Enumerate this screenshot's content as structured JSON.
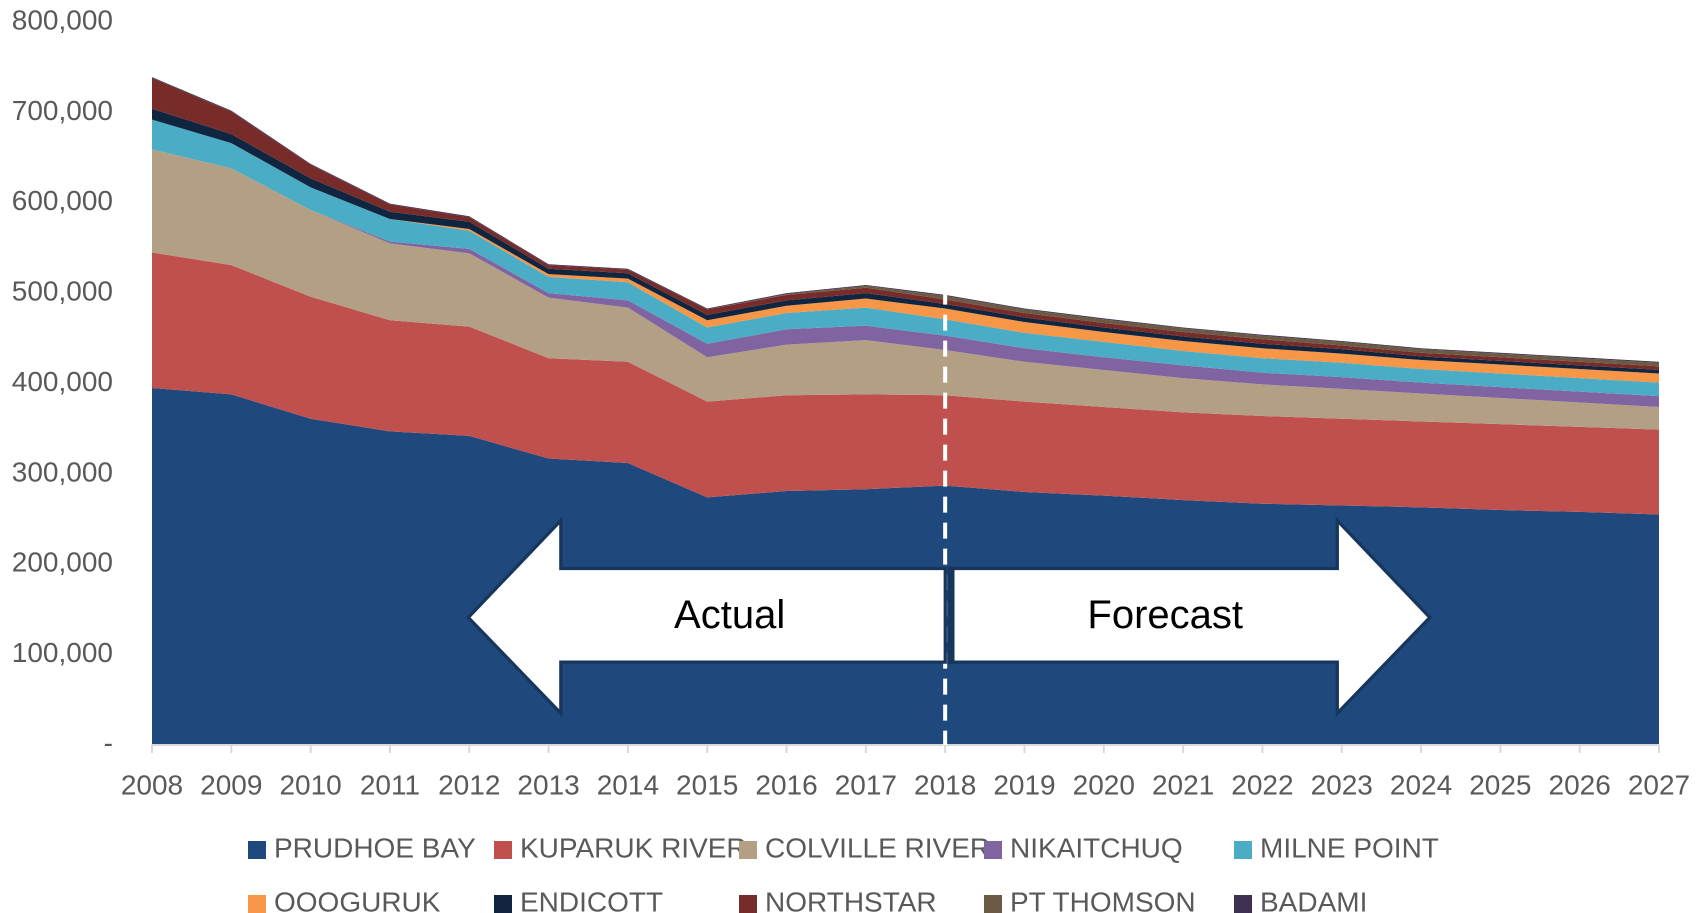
{
  "chart_data": {
    "type": "stacked_area",
    "categories": [
      "2008",
      "2009",
      "2010",
      "2011",
      "2012",
      "2013",
      "2014",
      "2015",
      "2016",
      "2017",
      "2018",
      "2019",
      "2020",
      "2021",
      "2022",
      "2023",
      "2024",
      "2025",
      "2026",
      "2027"
    ],
    "series": [
      {
        "name": "PRUDHOE BAY",
        "color": "#1f497d",
        "values": [
          395000,
          388000,
          361000,
          347000,
          342000,
          317000,
          312000,
          274000,
          281000,
          283000,
          287000,
          280000,
          276000,
          271000,
          267000,
          265000,
          263000,
          260000,
          258000,
          255000
        ]
      },
      {
        "name": "KUPARUK RIVER",
        "color": "#c0504d",
        "values": [
          150000,
          143000,
          135000,
          123000,
          121000,
          111000,
          112000,
          106000,
          106000,
          105000,
          100000,
          100000,
          98000,
          97000,
          97000,
          96000,
          95000,
          95000,
          94000,
          94000
        ]
      },
      {
        "name": "COLVILLE RIVER",
        "color": "#b3a084",
        "values": [
          114000,
          107000,
          96000,
          85000,
          81000,
          67000,
          60000,
          49000,
          56000,
          60000,
          50000,
          44000,
          41000,
          38000,
          35000,
          33000,
          31000,
          29000,
          27000,
          25000
        ]
      },
      {
        "name": "NIKAITCHUQ",
        "color": "#8064a2",
        "values": [
          0,
          0,
          0,
          2000,
          5000,
          5000,
          8000,
          15000,
          17000,
          16000,
          16000,
          15000,
          14000,
          14000,
          13000,
          13000,
          12000,
          12000,
          12000,
          12000
        ]
      },
      {
        "name": "MILNE POINT",
        "color": "#4bacc6",
        "values": [
          33000,
          28000,
          25000,
          25000,
          20000,
          18000,
          20000,
          18000,
          18000,
          20000,
          18000,
          17000,
          17000,
          16000,
          16000,
          16000,
          15000,
          15000,
          15000,
          15000
        ]
      },
      {
        "name": "OOOGURUK",
        "color": "#f79646",
        "values": [
          0,
          0,
          0,
          0,
          2000,
          3000,
          4000,
          8000,
          8000,
          10000,
          12000,
          12000,
          11000,
          11000,
          11000,
          10000,
          10000,
          10000,
          10000,
          10000
        ]
      },
      {
        "name": "ENDICOTT",
        "color": "#10253f",
        "values": [
          12000,
          10000,
          10000,
          8000,
          8000,
          6000,
          6000,
          6000,
          6000,
          6000,
          5000,
          5000,
          5000,
          5000,
          5000,
          5000,
          4000,
          4000,
          4000,
          4000
        ]
      },
      {
        "name": "NORTHSTAR",
        "color": "#772c2a",
        "values": [
          34000,
          25000,
          15000,
          8000,
          5000,
          4000,
          4000,
          6000,
          6000,
          6000,
          5000,
          5000,
          5000,
          5000,
          5000,
          4000,
          4000,
          4000,
          4000,
          4000
        ]
      },
      {
        "name": "PT THOMSON",
        "color": "#6b5b45",
        "values": [
          0,
          0,
          0,
          0,
          0,
          0,
          0,
          0,
          1000,
          2000,
          4000,
          4000,
          4000,
          4000,
          4000,
          4000,
          4000,
          4000,
          4000,
          4000
        ]
      },
      {
        "name": "BADAMI",
        "color": "#3f3151",
        "values": [
          1000,
          1000,
          1000,
          1000,
          1000,
          1000,
          1000,
          1000,
          1000,
          1000,
          1000,
          1000,
          1000,
          1000,
          1000,
          1000,
          1000,
          1000,
          1000,
          1000
        ]
      }
    ],
    "ylim": [
      0,
      800000
    ],
    "yticks": [
      {
        "value": 0,
        "label": "-"
      },
      {
        "value": 100000,
        "label": "100,000"
      },
      {
        "value": 200000,
        "label": "200,000"
      },
      {
        "value": 300000,
        "label": "300,000"
      },
      {
        "value": 400000,
        "label": "400,000"
      },
      {
        "value": 500000,
        "label": "500,000"
      },
      {
        "value": 600000,
        "label": "600,000"
      },
      {
        "value": 700000,
        "label": "700,000"
      },
      {
        "value": 800000,
        "label": "800,000"
      }
    ],
    "annotations": [
      "Actual",
      "Forecast"
    ]
  }
}
